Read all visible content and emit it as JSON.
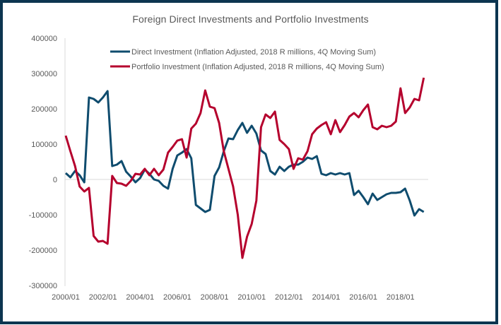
{
  "chart_data": {
    "type": "line",
    "title": "Foreign Direct Investments and Portfolio Investments",
    "xlabel": "",
    "ylabel": "",
    "ylim": [
      -300000,
      400000
    ],
    "yticks": [
      "400000",
      "300000",
      "200000",
      "100000",
      "0",
      "-100000",
      "-200000",
      "-300000"
    ],
    "ytick_values": [
      400000,
      300000,
      200000,
      100000,
      0,
      -100000,
      -200000,
      -300000
    ],
    "xticks": [
      "2000/01",
      "2002/01",
      "2004/01",
      "2006/01",
      "2008/01",
      "2010/01",
      "2012/01",
      "2014/01",
      "2016/01",
      "2018/01"
    ],
    "xtick_index": [
      0,
      8,
      16,
      24,
      32,
      40,
      48,
      56,
      64,
      72
    ],
    "x_start": "2000/01",
    "x_frequency": "quarterly",
    "point_count": 78,
    "grid": "zero-line only",
    "legend_position": "top",
    "series": [
      {
        "name": "Direct Investment (Inflation Adjusted, 2018 R millions, 4Q Moving Sum)",
        "color": "#0f4c6e",
        "values": [
          18000,
          6000,
          24000,
          12000,
          -8000,
          232000,
          228000,
          218000,
          232000,
          250000,
          38000,
          42000,
          52000,
          22000,
          8000,
          -8000,
          4000,
          28000,
          16000,
          0,
          -4000,
          -18000,
          -26000,
          30000,
          68000,
          76000,
          86000,
          60000,
          -72000,
          -82000,
          -92000,
          -86000,
          10000,
          34000,
          80000,
          116000,
          114000,
          140000,
          160000,
          132000,
          152000,
          130000,
          82000,
          72000,
          24000,
          14000,
          36000,
          24000,
          36000,
          42000,
          42000,
          50000,
          62000,
          58000,
          66000,
          16000,
          12000,
          18000,
          14000,
          18000,
          14000,
          18000,
          -44000,
          -32000,
          -50000,
          -70000,
          -40000,
          -58000,
          -50000,
          -42000,
          -38000,
          -38000,
          -36000,
          -26000,
          -60000,
          -102000,
          -84000,
          -92000
        ]
      },
      {
        "name": "Portfolio Investment (Inflation Adjusted, 2018 R millions, 4Q Moving Sum)",
        "color": "#b5002d",
        "values": [
          124000,
          80000,
          38000,
          -20000,
          -34000,
          -24000,
          -160000,
          -176000,
          -174000,
          -182000,
          10000,
          -10000,
          -12000,
          -18000,
          -4000,
          16000,
          14000,
          30000,
          12000,
          30000,
          12000,
          28000,
          76000,
          92000,
          110000,
          114000,
          62000,
          144000,
          158000,
          188000,
          252000,
          206000,
          202000,
          160000,
          80000,
          30000,
          -20000,
          -100000,
          -222000,
          -162000,
          -126000,
          -60000,
          148000,
          184000,
          174000,
          192000,
          112000,
          100000,
          86000,
          30000,
          60000,
          56000,
          80000,
          128000,
          144000,
          154000,
          162000,
          128000,
          168000,
          134000,
          154000,
          178000,
          188000,
          176000,
          196000,
          212000,
          148000,
          142000,
          152000,
          148000,
          152000,
          164000,
          258000,
          188000,
          204000,
          228000,
          224000,
          288000
        ]
      }
    ]
  }
}
